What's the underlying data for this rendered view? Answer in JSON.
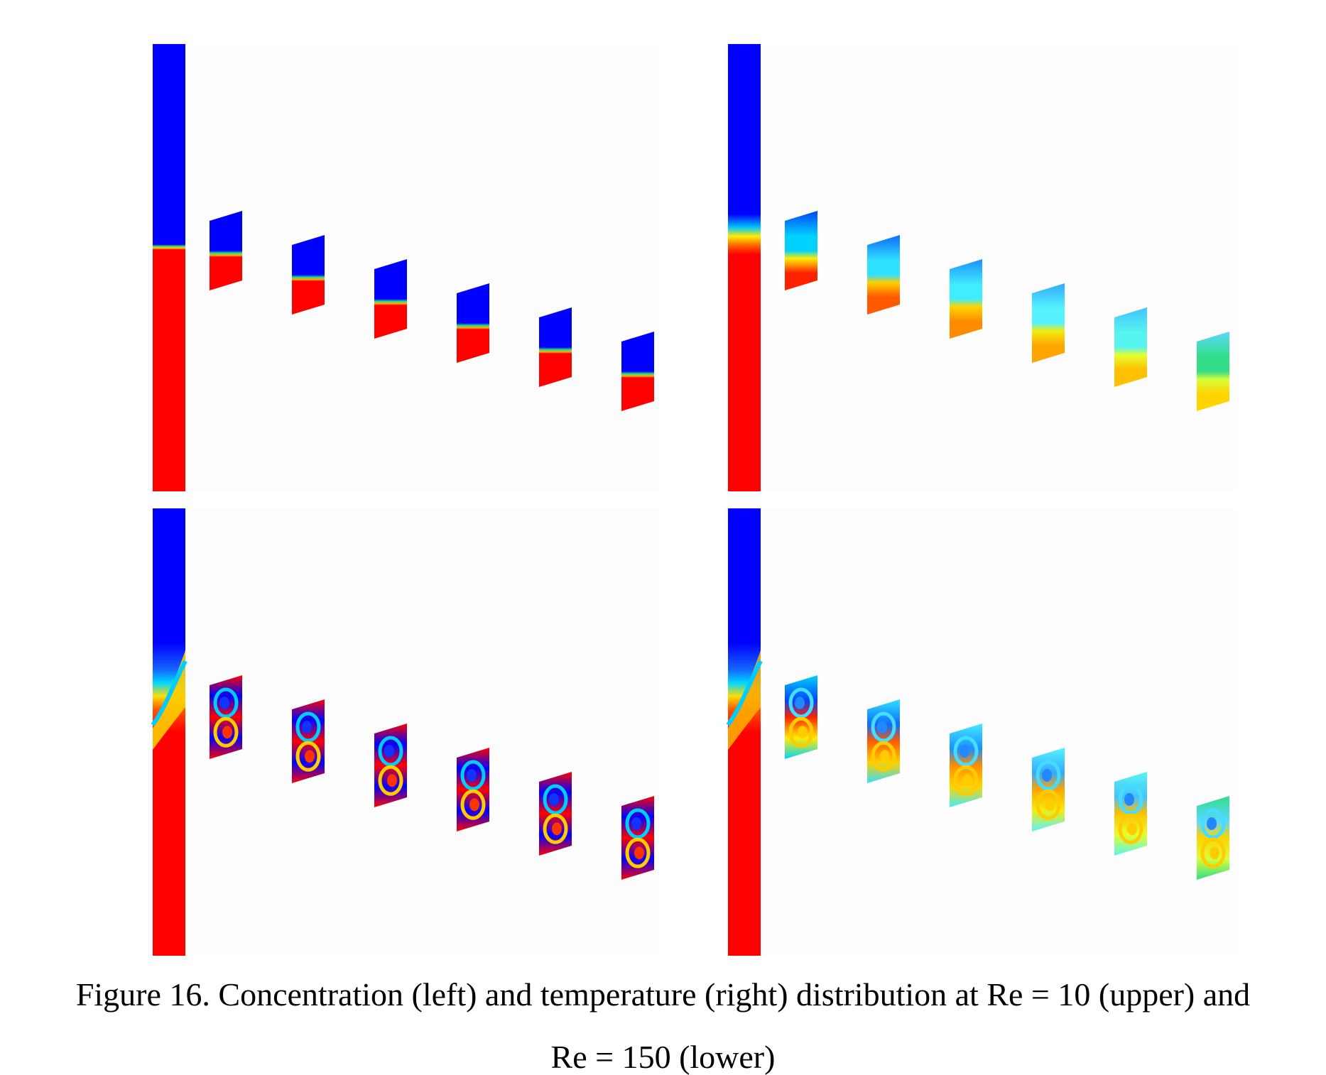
{
  "figure": {
    "caption_line1": "Figure 16. Concentration (left) and temperature (right) distribution at Re = 10 (upper) and",
    "caption_line2": "Re = 150 (lower)"
  },
  "panels": [
    {
      "id": "concentration-re10",
      "field": "concentration",
      "re": 10,
      "row": "upper",
      "col": "left"
    },
    {
      "id": "temperature-re10",
      "field": "temperature",
      "re": 10,
      "row": "upper",
      "col": "right"
    },
    {
      "id": "concentration-re150",
      "field": "concentration",
      "re": 150,
      "row": "lower",
      "col": "left"
    },
    {
      "id": "temperature-re150",
      "field": "temperature",
      "re": 150,
      "row": "lower",
      "col": "right"
    }
  ],
  "colors": {
    "high": "#ff0000",
    "low": "#0000ff",
    "temperature_sequence": [
      [
        "#ff2200",
        "#ffee00",
        "#00d2ff",
        "#0044ff"
      ],
      [
        "#ff5a00",
        "#ffd000",
        "#2fe0ff",
        "#0d6cff"
      ],
      [
        "#ff8c00",
        "#ffd500",
        "#40ecff",
        "#1c8eff"
      ],
      [
        "#ffa500",
        "#f0ee10",
        "#56f3ff",
        "#33aaff"
      ],
      [
        "#ffc000",
        "#e6ff30",
        "#56f5f0",
        "#44c2ff"
      ],
      [
        "#ffd400",
        "#d6ff3c",
        "#33dd88",
        "#5ad8ff"
      ]
    ]
  }
}
